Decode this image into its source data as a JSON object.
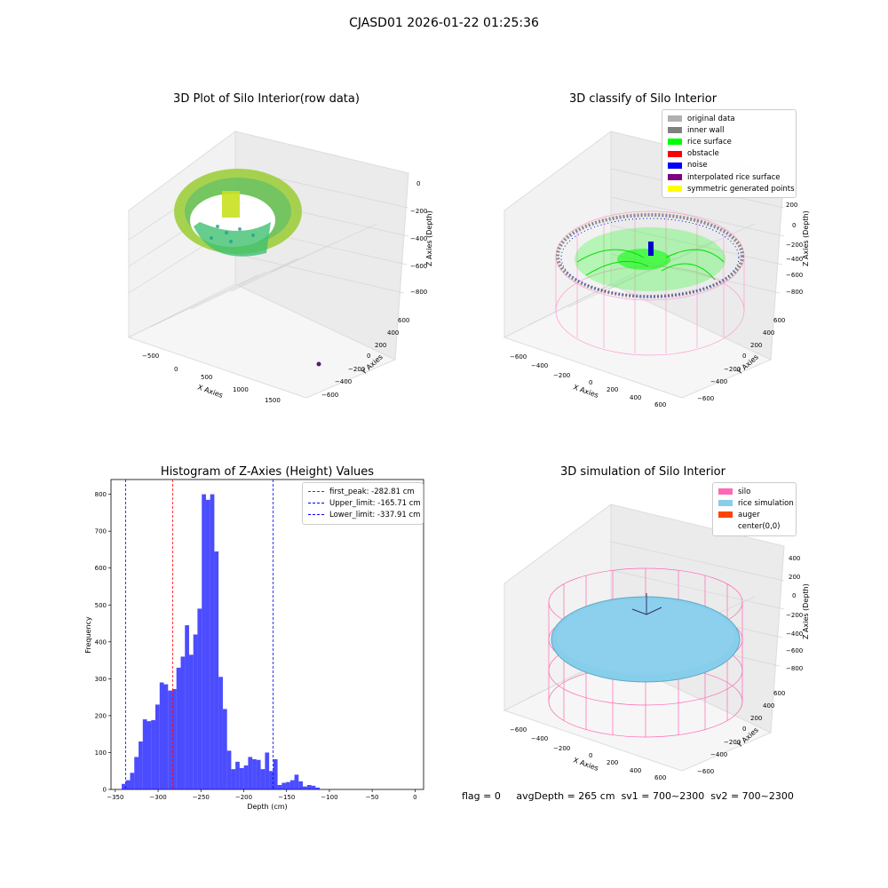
{
  "suptitle": "CJASD01 2026-01-22 01:25:36",
  "panels": {
    "raw": {
      "title": "3D Plot of Silo Interior(row data)",
      "xlabel": "X Axies",
      "ylabel": "Y Axies",
      "zlabel": "Z Axies (Depth)",
      "xticks": [
        "−500",
        "0",
        "500",
        "1000",
        "1500"
      ],
      "yticks": [
        "600",
        "400",
        "200",
        "0",
        "−200",
        "−400",
        "−600"
      ],
      "zticks": [
        "0",
        "−200",
        "−400",
        "−600",
        "−800"
      ]
    },
    "classify": {
      "title": "3D classify of Silo Interior",
      "xlabel": "X Axies",
      "ylabel": "Y Axies",
      "zlabel": "Z Axies (Depth)",
      "xticks": [
        "−600",
        "−400",
        "−200",
        "0",
        "200",
        "400",
        "600"
      ],
      "yticks": [
        "600",
        "400",
        "200",
        "0",
        "−200",
        "−400",
        "−600"
      ],
      "zticks": [
        "200",
        "0",
        "−200",
        "−400",
        "−600",
        "−800"
      ],
      "legend": [
        {
          "label": "original data",
          "color": "#b0b0b0"
        },
        {
          "label": "inner wall",
          "color": "#808080"
        },
        {
          "label": "rice surface",
          "color": "#00ff00"
        },
        {
          "label": "obstacle",
          "color": "#ff0000"
        },
        {
          "label": "noise",
          "color": "#0000ff"
        },
        {
          "label": "interpolated rice surface",
          "color": "#800080"
        },
        {
          "label": "symmetric generated points",
          "color": "#ffff00"
        }
      ]
    },
    "simulation": {
      "title": "3D simulation of Silo Interior",
      "xlabel": "X Axies",
      "ylabel": "Y Axies",
      "zlabel": "Z Axies (Depth)",
      "xticks": [
        "−600",
        "−400",
        "−200",
        "0",
        "200",
        "400",
        "600"
      ],
      "yticks": [
        "600",
        "400",
        "200",
        "0",
        "−200",
        "−400",
        "−600"
      ],
      "zticks": [
        "400",
        "200",
        "0",
        "−200",
        "−400",
        "−600",
        "−800"
      ],
      "legend": [
        {
          "label": "silo",
          "color": "#ff69b4"
        },
        {
          "label": "rice simulation",
          "color": "#87ceeb"
        },
        {
          "label": "auger",
          "color": "#ff4500"
        },
        {
          "label": "center(0,0)",
          "color": "#ffffff"
        }
      ]
    }
  },
  "status": {
    "flag": "flag = 0",
    "avg": "avgDepth = 265 cm",
    "sv1": "sv1 = 700~2300",
    "sv2": "sv2 = 700~2300"
  },
  "chart_data": {
    "type": "bar",
    "title": "Histogram of Z-Axies (Height) Values",
    "xlabel": "Depth (cm)",
    "ylabel": "Frequency",
    "xlim": [
      -355,
      10
    ],
    "ylim": [
      0,
      840
    ],
    "xticks": [
      -350,
      -300,
      -250,
      -200,
      -150,
      -100,
      -50,
      0
    ],
    "yticks": [
      0,
      100,
      200,
      300,
      400,
      500,
      600,
      700,
      800
    ],
    "bar_color": "#0000ff",
    "bins": [
      {
        "x0": -342.5,
        "x1": -337.6,
        "value": 15
      },
      {
        "x0": -337.6,
        "x1": -332.7,
        "value": 25
      },
      {
        "x0": -332.7,
        "x1": -327.8,
        "value": 45
      },
      {
        "x0": -327.8,
        "x1": -322.8,
        "value": 88
      },
      {
        "x0": -322.8,
        "x1": -317.9,
        "value": 130
      },
      {
        "x0": -317.9,
        "x1": -313.0,
        "value": 190
      },
      {
        "x0": -313.0,
        "x1": -308.1,
        "value": 185
      },
      {
        "x0": -308.1,
        "x1": -303.2,
        "value": 188
      },
      {
        "x0": -303.2,
        "x1": -298.2,
        "value": 230
      },
      {
        "x0": -298.2,
        "x1": -293.3,
        "value": 290
      },
      {
        "x0": -293.3,
        "x1": -288.4,
        "value": 285
      },
      {
        "x0": -288.4,
        "x1": -283.5,
        "value": 268
      },
      {
        "x0": -283.5,
        "x1": -278.6,
        "value": 272
      },
      {
        "x0": -278.6,
        "x1": -273.6,
        "value": 330
      },
      {
        "x0": -273.6,
        "x1": -268.7,
        "value": 360
      },
      {
        "x0": -268.7,
        "x1": -263.8,
        "value": 445
      },
      {
        "x0": -263.8,
        "x1": -258.9,
        "value": 365
      },
      {
        "x0": -258.9,
        "x1": -254.0,
        "value": 420
      },
      {
        "x0": -254.0,
        "x1": -249.0,
        "value": 490
      },
      {
        "x0": -249.0,
        "x1": -244.1,
        "value": 800
      },
      {
        "x0": -244.1,
        "x1": -239.2,
        "value": 785
      },
      {
        "x0": -239.2,
        "x1": -234.3,
        "value": 800
      },
      {
        "x0": -234.3,
        "x1": -229.4,
        "value": 645
      },
      {
        "x0": -229.4,
        "x1": -224.4,
        "value": 305
      },
      {
        "x0": -224.4,
        "x1": -219.5,
        "value": 218
      },
      {
        "x0": -219.5,
        "x1": -214.6,
        "value": 105
      },
      {
        "x0": -214.6,
        "x1": -209.7,
        "value": 55
      },
      {
        "x0": -209.7,
        "x1": -204.8,
        "value": 75
      },
      {
        "x0": -204.8,
        "x1": -199.8,
        "value": 58
      },
      {
        "x0": -199.8,
        "x1": -194.9,
        "value": 65
      },
      {
        "x0": -194.9,
        "x1": -190.0,
        "value": 88
      },
      {
        "x0": -190.0,
        "x1": -185.1,
        "value": 82
      },
      {
        "x0": -185.1,
        "x1": -180.2,
        "value": 80
      },
      {
        "x0": -180.2,
        "x1": -175.2,
        "value": 55
      },
      {
        "x0": -175.2,
        "x1": -170.3,
        "value": 100
      },
      {
        "x0": -170.3,
        "x1": -165.4,
        "value": 50
      },
      {
        "x0": -165.4,
        "x1": -160.5,
        "value": 82
      },
      {
        "x0": -160.5,
        "x1": -155.6,
        "value": 12
      },
      {
        "x0": -155.6,
        "x1": -150.6,
        "value": 18
      },
      {
        "x0": -150.6,
        "x1": -145.7,
        "value": 20
      },
      {
        "x0": -145.7,
        "x1": -140.8,
        "value": 25
      },
      {
        "x0": -140.8,
        "x1": -135.9,
        "value": 40
      },
      {
        "x0": -135.9,
        "x1": -131.0,
        "value": 22
      },
      {
        "x0": -131.0,
        "x1": -126.0,
        "value": 8
      },
      {
        "x0": -126.0,
        "x1": -121.1,
        "value": 12
      },
      {
        "x0": -121.1,
        "x1": -116.2,
        "value": 10
      },
      {
        "x0": -116.2,
        "x1": -111.3,
        "value": 5
      }
    ],
    "vlines": [
      {
        "label": "first_peak: -282.81 cm",
        "x": -282.81,
        "color": "#ff0000"
      },
      {
        "label": "Upper_limit: -165.71 cm",
        "x": -165.71,
        "color": "#0000ff"
      },
      {
        "label": "Lower_limit: -337.91 cm",
        "x": -337.91,
        "color": "#0000ff"
      }
    ]
  }
}
